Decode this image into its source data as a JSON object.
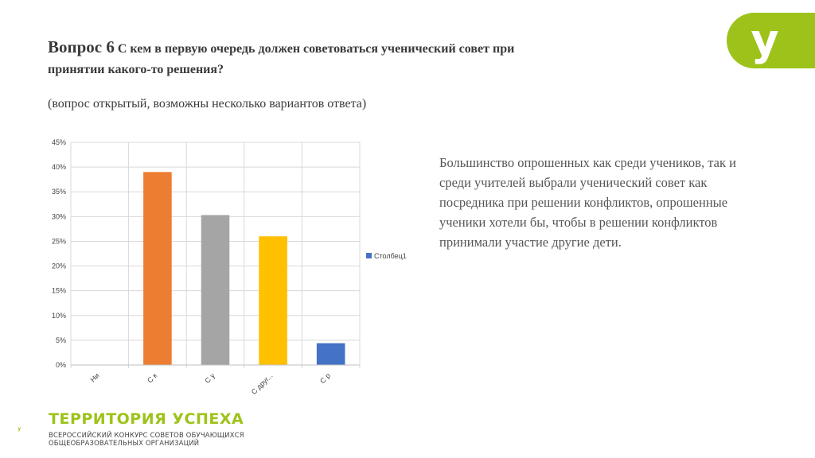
{
  "slide": {
    "question_number": "Вопрос 6",
    "question_text": "С кем в первую очередь должен советоваться ученический совет при принятии какого-то решения?",
    "subtitle": "(вопрос открытый, возможны несколько вариантов ответа)",
    "side_text": "Большинство опрошенных как среди учеников, так и среди учителей выбрали ученический совет как посредника при решении конфликтов, опрошенные ученики хотели бы, чтобы в решении конфликтов принимали участие другие дети."
  },
  "branding": {
    "corner_logo_glyph": "у",
    "bottom_logo_glyph": "у",
    "name": "ТЕРРИТОРИЯ УСПЕХА",
    "sub_line1": "ВСЕРОССИЙСКИЙ КОНКУРС СОВЕТОВ ОБУЧАЮЩИХСЯ",
    "sub_line2": "ОБЩЕОБРАЗОВАТЕЛЬНЫХ ОРГАНИЗАЦИЙ",
    "accent_color": "#9dc31a"
  },
  "chart_data": {
    "type": "bar",
    "categories": [
      "Ни",
      "С к",
      "С у",
      "С друг...",
      "С р"
    ],
    "series": [
      {
        "name": "Столбец1",
        "values": [
          0,
          0.39,
          0.303,
          0.26,
          0.044
        ],
        "colors": [
          "#4472c4",
          "#ed7d31",
          "#a5a5a5",
          "#ffc000",
          "#4472c4"
        ]
      }
    ],
    "y_ticks": [
      "0%",
      "5%",
      "10%",
      "15%",
      "20%",
      "25%",
      "30%",
      "35%",
      "40%",
      "45%"
    ],
    "ylim": [
      0,
      0.45
    ],
    "grid": "y-major and x-category lines",
    "legend_position": "right",
    "legend_color": "#4472c4"
  }
}
